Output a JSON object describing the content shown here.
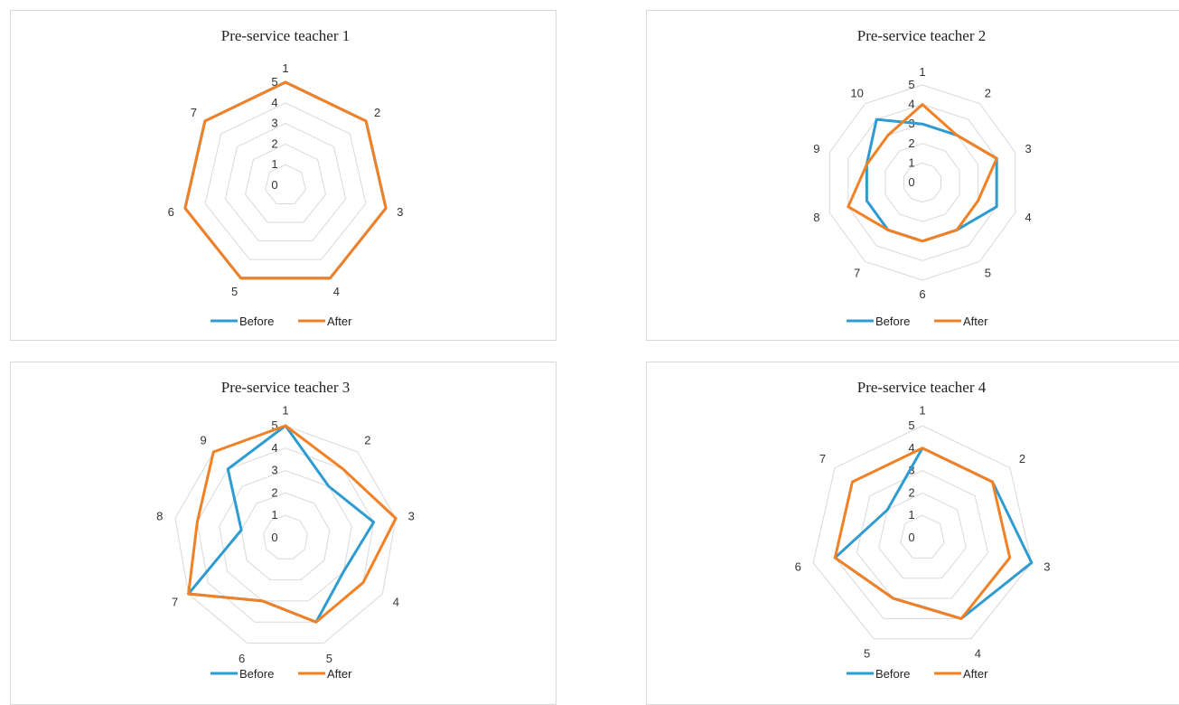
{
  "chart_data": [
    {
      "type": "radar",
      "title": "Pre-service teacher 1",
      "categories": [
        "1",
        "2",
        "3",
        "4",
        "5",
        "6",
        "7"
      ],
      "radial_ticks": [
        "0",
        "1",
        "2",
        "3",
        "4",
        "5"
      ],
      "rmax": 5,
      "grid": true,
      "legend_position": "bottom",
      "series": [
        {
          "name": "Before",
          "color": "#2E9BD1",
          "values": [
            5,
            5,
            5,
            5,
            5,
            5,
            5
          ]
        },
        {
          "name": "After",
          "color": "#F28025",
          "values": [
            5,
            5,
            5,
            5,
            5,
            5,
            5
          ]
        }
      ]
    },
    {
      "type": "radar",
      "title": "Pre-service teacher 2",
      "categories": [
        "1",
        "2",
        "3",
        "4",
        "5",
        "6",
        "7",
        "8",
        "9",
        "10"
      ],
      "radial_ticks": [
        "0",
        "1",
        "2",
        "3",
        "4",
        "5"
      ],
      "rmax": 5,
      "grid": true,
      "legend_position": "bottom",
      "series": [
        {
          "name": "Before",
          "color": "#2E9BD1",
          "values": [
            3,
            3,
            4,
            4,
            3,
            3,
            3,
            3,
            3,
            4
          ]
        },
        {
          "name": "After",
          "color": "#F28025",
          "values": [
            4,
            3,
            4,
            3,
            3,
            3,
            3,
            4,
            3,
            3
          ]
        }
      ]
    },
    {
      "type": "radar",
      "title": "Pre-service teacher 3",
      "categories": [
        "1",
        "2",
        "3",
        "4",
        "5",
        "6",
        "7",
        "8",
        "9"
      ],
      "radial_ticks": [
        "0",
        "1",
        "2",
        "3",
        "4",
        "5"
      ],
      "rmax": 5,
      "grid": true,
      "legend_position": "bottom",
      "series": [
        {
          "name": "Before",
          "color": "#2E9BD1",
          "values": [
            5,
            3,
            4,
            3,
            4,
            3,
            5,
            2,
            4
          ]
        },
        {
          "name": "After",
          "color": "#F28025",
          "values": [
            5,
            4,
            5,
            4,
            4,
            3,
            5,
            4,
            5
          ]
        }
      ]
    },
    {
      "type": "radar",
      "title": "Pre-service teacher 4",
      "categories": [
        "1",
        "2",
        "3",
        "4",
        "5",
        "6",
        "7"
      ],
      "radial_ticks": [
        "0",
        "1",
        "2",
        "3",
        "4",
        "5"
      ],
      "rmax": 5,
      "grid": true,
      "legend_position": "bottom",
      "series": [
        {
          "name": "Before",
          "color": "#2E9BD1",
          "values": [
            4,
            4,
            5,
            4,
            3,
            4,
            2
          ]
        },
        {
          "name": "After",
          "color": "#F28025",
          "values": [
            4,
            4,
            4,
            4,
            3,
            4,
            4
          ]
        }
      ]
    }
  ]
}
